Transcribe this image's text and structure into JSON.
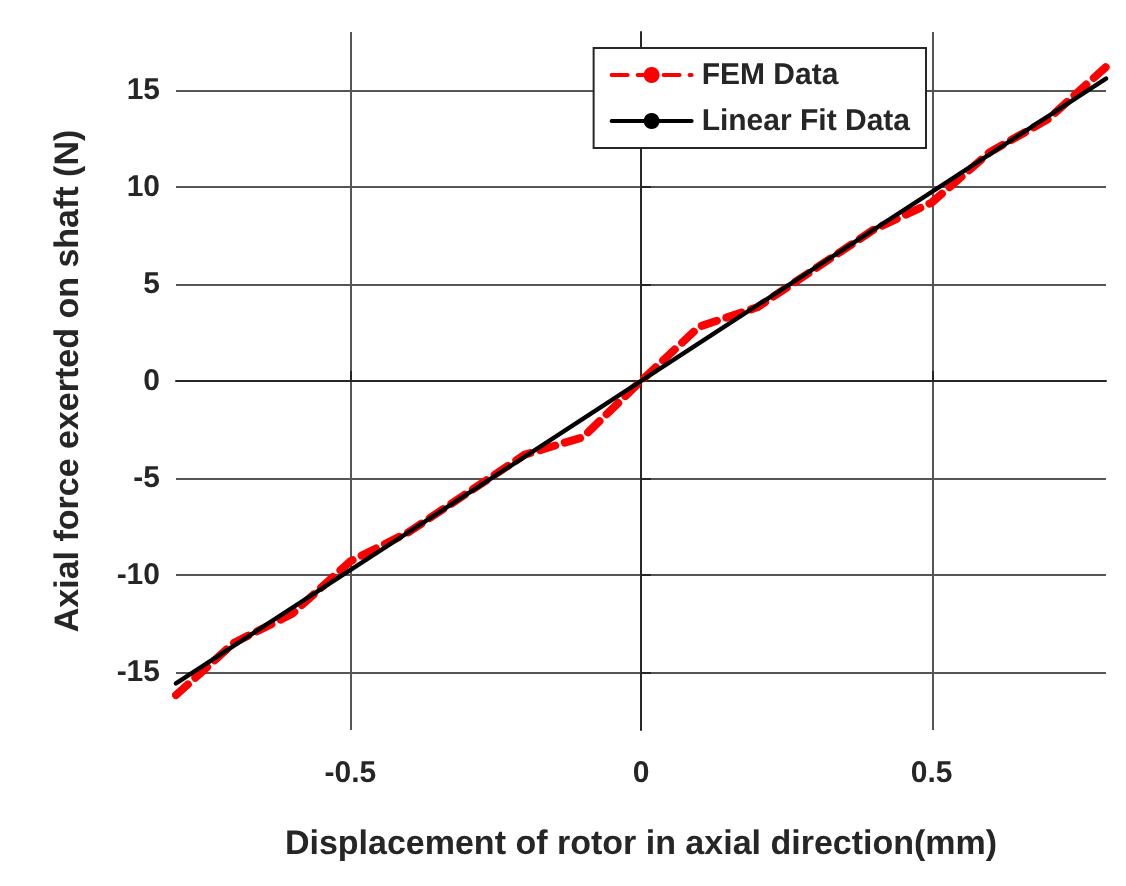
{
  "chart_data": {
    "type": "line",
    "xlabel": "Displacement of rotor in axial direction(mm)",
    "ylabel": "Axial force exerted on shaft (N)",
    "xlim": [
      -0.8,
      0.8
    ],
    "xticks": [
      -0.5,
      0,
      0.5
    ],
    "ylim": [
      -18,
      18
    ],
    "yticks": [
      -15,
      -10,
      -5,
      0,
      5,
      10,
      15
    ],
    "grid": true,
    "legend": "top right",
    "marker": "none",
    "series": [
      {
        "name": "FEM Data",
        "color": "#ff0000",
        "line_style": "dashed",
        "x": [
          -0.8,
          -0.7,
          -0.6,
          -0.5,
          -0.4,
          -0.3,
          -0.2,
          -0.1,
          0,
          0.1,
          0.2,
          0.3,
          0.4,
          0.5,
          0.6,
          0.7,
          0.8
        ],
        "values": [
          -16.2,
          -13.5,
          -12,
          -9.3,
          -7.8,
          -5.8,
          -3.8,
          -2.9,
          0,
          2.8,
          3.8,
          5.8,
          7.8,
          9.2,
          11.8,
          13.5,
          16.2
        ]
      },
      {
        "name": "Linear Fit Data",
        "color": "#000000",
        "line_style": "solid",
        "x": [
          -0.8,
          0.8
        ],
        "values": [
          -15.6,
          15.6
        ]
      }
    ]
  }
}
